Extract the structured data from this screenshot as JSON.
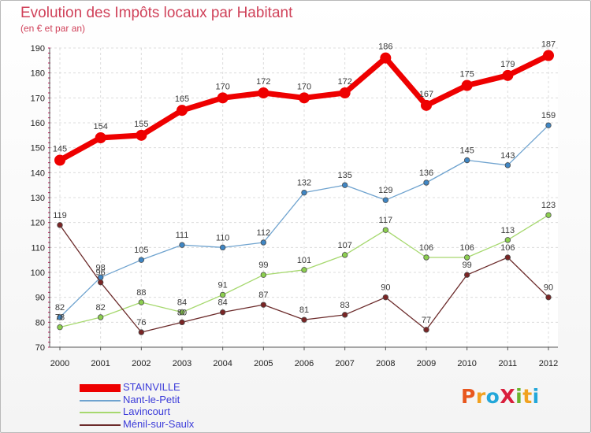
{
  "title": "Evolution des Impôts locaux par Habitant",
  "subtitle": "(en € et par an)",
  "logo": {
    "text": "ProXiti",
    "letter_colors": [
      "#e8571e",
      "#f1a11f",
      "#23a7d9",
      "#d91f3c",
      "#6ab42d",
      "#f1a11f",
      "#23a7d9"
    ]
  },
  "chart_data": {
    "type": "line",
    "title": "Evolution des Impôts locaux par Habitant",
    "subtitle": "(en € et par an)",
    "x": [
      "2000",
      "2001",
      "2002",
      "2003",
      "2004",
      "2005",
      "2006",
      "2007",
      "2008",
      "2009",
      "2010",
      "2011",
      "2012"
    ],
    "ylim": [
      70,
      190
    ],
    "yticks": [
      70,
      80,
      90,
      100,
      110,
      120,
      130,
      140,
      150,
      160,
      170,
      180,
      190
    ],
    "grid": true,
    "legend_position": "bottom-left",
    "series": [
      {
        "name": "STAINVILLE",
        "values": [
          145,
          154,
          155,
          165,
          170,
          172,
          170,
          172,
          186,
          167,
          175,
          179,
          187
        ],
        "color": "#ee0000",
        "marker_fill": "#ee0000",
        "legend_color": "#3b3bd9",
        "emphasis": true
      },
      {
        "name": "Nant-le-Petit",
        "values": [
          82,
          98,
          105,
          111,
          110,
          112,
          132,
          135,
          129,
          136,
          145,
          143,
          159
        ],
        "color": "#6fa3cf",
        "marker_fill": "#3f86c4",
        "legend_color": "#3b3bd9"
      },
      {
        "name": "Lavincourt",
        "values": [
          78,
          82,
          88,
          84,
          91,
          99,
          101,
          107,
          117,
          106,
          106,
          113,
          123
        ],
        "color": "#a6d86e",
        "marker_fill": "#8ccf4f",
        "legend_color": "#3b3bd9"
      },
      {
        "name": "Ménil-sur-Saulx",
        "values": [
          119,
          96,
          76,
          80,
          84,
          87,
          81,
          83,
          90,
          77,
          99,
          106,
          90
        ],
        "color": "#6b2a2a",
        "marker_fill": "#7a2525",
        "legend_color": "#3b3bd9"
      }
    ]
  }
}
